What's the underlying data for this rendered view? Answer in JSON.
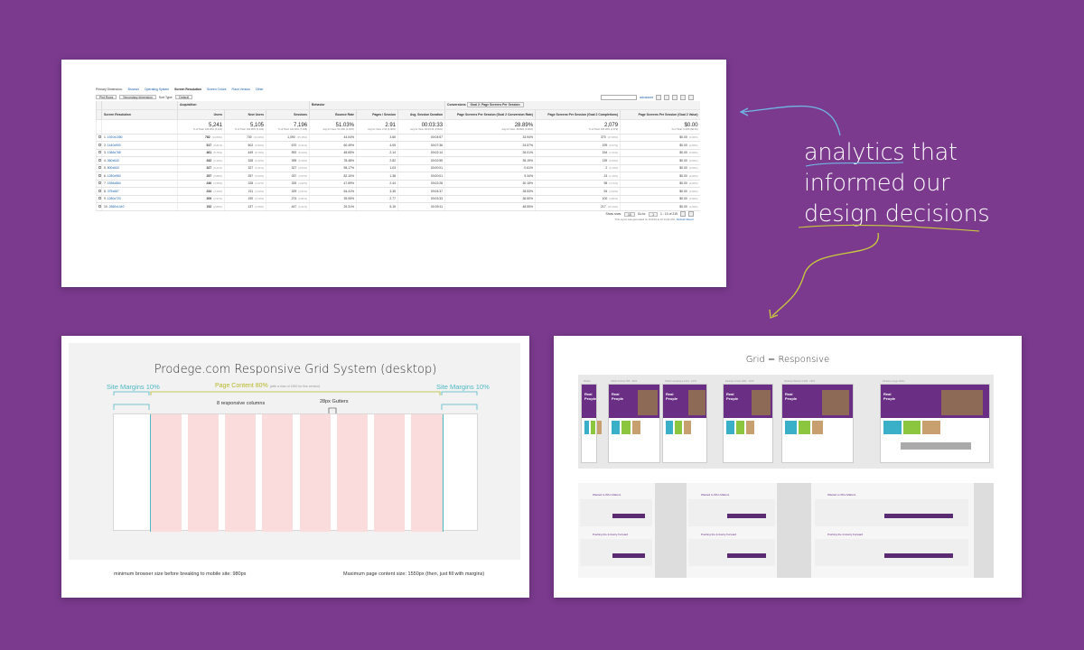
{
  "annotation": {
    "lines": [
      "analytics that",
      "informed our",
      "design decisions"
    ]
  },
  "analytics": {
    "primary_dimension_label": "Primary Dimension:",
    "dimensions": [
      "Browser",
      "Operating System",
      "Screen Resolution",
      "Screen Colors",
      "Flash Version",
      "Other"
    ],
    "active_dimension": "Screen Resolution",
    "plot_rows": "Plot Rows",
    "secondary_dimension": "Secondary dimension",
    "sort_type_label": "Sort Type:",
    "sort_type": "Default",
    "advanced": "advanced",
    "conversions_label": "Conversions",
    "conversions_goal": "Goal 2: Page Screens Per Session",
    "group_acquisition": "Acquisition",
    "group_behavior": "Behavior",
    "headers": [
      "Screen Resolution",
      "Users",
      "New Users",
      "Sessions",
      "Bounce Rate",
      "Pages / Session",
      "Avg. Session Duration",
      "Page Screens Per Session (Goal 2 Conversion Rate)",
      "Page Screens Per Session (Goal 2 Completions)",
      "Page Screens Per Session (Goal 2 Value)"
    ],
    "totals": [
      {
        "v": "5,241",
        "s": "% of Total: 100.00% (5,241)"
      },
      {
        "v": "5,105",
        "s": "% of Total: 100.06% (5,102)"
      },
      {
        "v": "7,196",
        "s": "% of Total: 100.00% (7,196)"
      },
      {
        "v": "51.03%",
        "s": "Avg for View: 51.03% (0.00%)"
      },
      {
        "v": "2.91",
        "s": "Avg for View: 2.91 (0.00%)"
      },
      {
        "v": "00:03:33",
        "s": "Avg for View: 00:03:33 (0.00%)"
      },
      {
        "v": "28.89%",
        "s": "Avg for View: 28.89% (0.00%)"
      },
      {
        "v": "2,079",
        "s": "% of Total: 100.00% (2,079)"
      },
      {
        "v": "$0.00",
        "s": "% of Total: 0.00% ($0.00)"
      }
    ],
    "rows": [
      {
        "n": "1.",
        "res": "1920x1080",
        "users": "782",
        "up": "(14.84%)",
        "new": "730",
        "np": "(14.30%)",
        "sess": "1,090",
        "sp": "(15.15%)",
        "br": "44.04%",
        "pps": "3.65",
        "dur": "00:04:57",
        "cr": "33.94%",
        "comp": "370",
        "cp": "(17.80%)",
        "val": "$0.00",
        "vp": "(0.00%)"
      },
      {
        "n": "2.",
        "res": "1440x900",
        "users": "517",
        "up": "(9.81%)",
        "new": "502",
        "np": "(9.83%)",
        "sess": "670",
        "sp": "(9.31%)",
        "br": "60.49%",
        "pps": "4.05",
        "dur": "00:07:36",
        "cr": "24.57%",
        "comp": "199",
        "cp": "(9.57%)",
        "val": "$0.00",
        "vp": "(0.00%)"
      },
      {
        "n": "3.",
        "res": "1366x768",
        "users": "461",
        "up": "(8.75%)",
        "new": "449",
        "np": "(8.79%)",
        "sess": "592",
        "sp": "(8.23%)",
        "br": "48.65%",
        "pps": "2.14",
        "dur": "00:02:14",
        "cr": "26.01%",
        "comp": "154",
        "cp": "(7.41%)",
        "val": "$0.00",
        "vp": "(0.00%)"
      },
      {
        "n": "4.",
        "res": "360x640",
        "users": "332",
        "up": "(6.30%)",
        "new": "328",
        "np": "(6.42%)",
        "sess": "395",
        "sp": "(5.49%)",
        "br": "78.48%",
        "pps": "2.82",
        "dur": "00:02:55",
        "cr": "35.19%",
        "comp": "139",
        "cp": "(6.69%)",
        "val": "$0.00",
        "vp": "(0.00%)"
      },
      {
        "n": "5.",
        "res": "800x600",
        "users": "327",
        "up": "(6.21%)",
        "new": "327",
        "np": "(6.41%)",
        "sess": "327",
        "sp": "(4.54%)",
        "br": "98.17%",
        "pps": "1.03",
        "dur": "00:00:01",
        "cr": "0.61%",
        "comp": "2",
        "cp": "(0.10%)",
        "val": "$0.00",
        "vp": "(0.00%)"
      },
      {
        "n": "6.",
        "res": "1280x960",
        "users": "257",
        "up": "(4.88%)",
        "new": "257",
        "np": "(5.03%)",
        "sess": "257",
        "sp": "(3.57%)",
        "br": "82.10%",
        "pps": "1.38",
        "dur": "00:00:01",
        "cr": "9.34%",
        "comp": "24",
        "cp": "(1.15%)",
        "val": "$0.00",
        "vp": "(0.00%)"
      },
      {
        "n": "7.",
        "res": "1536x864",
        "users": "240",
        "up": "(4.56%)",
        "new": "228",
        "np": "(4.47%)",
        "sess": "325",
        "sp": "(4.52%)",
        "br": "47.69%",
        "pps": "2.44",
        "dur": "00:02:28",
        "cr": "30.15%",
        "comp": "98",
        "cp": "(4.71%)",
        "val": "$0.00",
        "vp": "(0.00%)"
      },
      {
        "n": "8.",
        "res": "375x667",
        "users": "234",
        "up": "(4.44%)",
        "new": "211",
        "np": "(4.13%)",
        "sess": "329",
        "sp": "(4.57%)",
        "br": "54.41%",
        "pps": "3.35",
        "dur": "00:04:37",
        "cr": "28.53%",
        "comp": "94",
        "cp": "(4.52%)",
        "val": "$0.00",
        "vp": "(0.00%)"
      },
      {
        "n": "9.",
        "res": "1280x720",
        "users": "209",
        "up": "(3.97%)",
        "new": "190",
        "np": "(3.72%)",
        "sess": "274",
        "sp": "(3.81%)",
        "br": "39.05%",
        "pps": "2.77",
        "dur": "00:03:33",
        "cr": "36.50%",
        "comp": "100",
        "cp": "(4.81%)",
        "val": "$0.00",
        "vp": "(0.00%)"
      },
      {
        "n": "10.",
        "res": "2560x1440",
        "users": "152",
        "up": "(2.89%)",
        "new": "137",
        "np": "(2.68%)",
        "sess": "447",
        "sp": "(6.21%)",
        "br": "29.31%",
        "pps": "5.15",
        "dur": "00:09:11",
        "cr": "48.55%",
        "comp": "217",
        "cp": "(10.44%)",
        "val": "$0.00",
        "vp": "(0.00%)"
      }
    ],
    "show_rows_label": "Show rows:",
    "show_rows_value": "10",
    "goto_label": "Go to:",
    "goto_value": "1",
    "range": "1 - 10 of 215",
    "report_note": "This report was generated on 11/6/19 at 10:13:31 AM -",
    "refresh": "Refresh Report"
  },
  "grid_system": {
    "title": "Prodege.com Responsive Grid System (desktop)",
    "margin_left": "Site Margins 10%",
    "margin_right": "Site Margins 10%",
    "content_label": "Page Content 80%",
    "content_note": "(with a max of 1550 for this version)",
    "columns_label": "8 responsive columns",
    "gutters_label": "28px Gutters",
    "min_note": "minimum browser size before breaking to mobile site: 980px",
    "max_note": "Maximum page content size: 1550px (then, just fill with margins)",
    "colors": {
      "margin": "#4cb8c4",
      "content": "#b5b82a",
      "column": "#fadcdd"
    }
  },
  "responsive": {
    "title": "Grid = Responsive",
    "hero_lines": [
      "Real",
      "People"
    ],
    "thumb_captions": [
      "Mobile",
      "Tablet Portrait 768 - 1024",
      "Tablet Landscape 1024 - 1279",
      "Desktop Small 1280 - 1439",
      "Desktop Medium 1440 - 1919",
      "Desktop Large 1920+"
    ],
    "panel_texts": [
      "Wasted to Who Matters",
      "Pushing the Industry Forward",
      "Wasted to Who Matters",
      "Pushing the Industry Forward",
      "Wasted to Who Matters",
      "Pushing the Industry Forward"
    ]
  }
}
